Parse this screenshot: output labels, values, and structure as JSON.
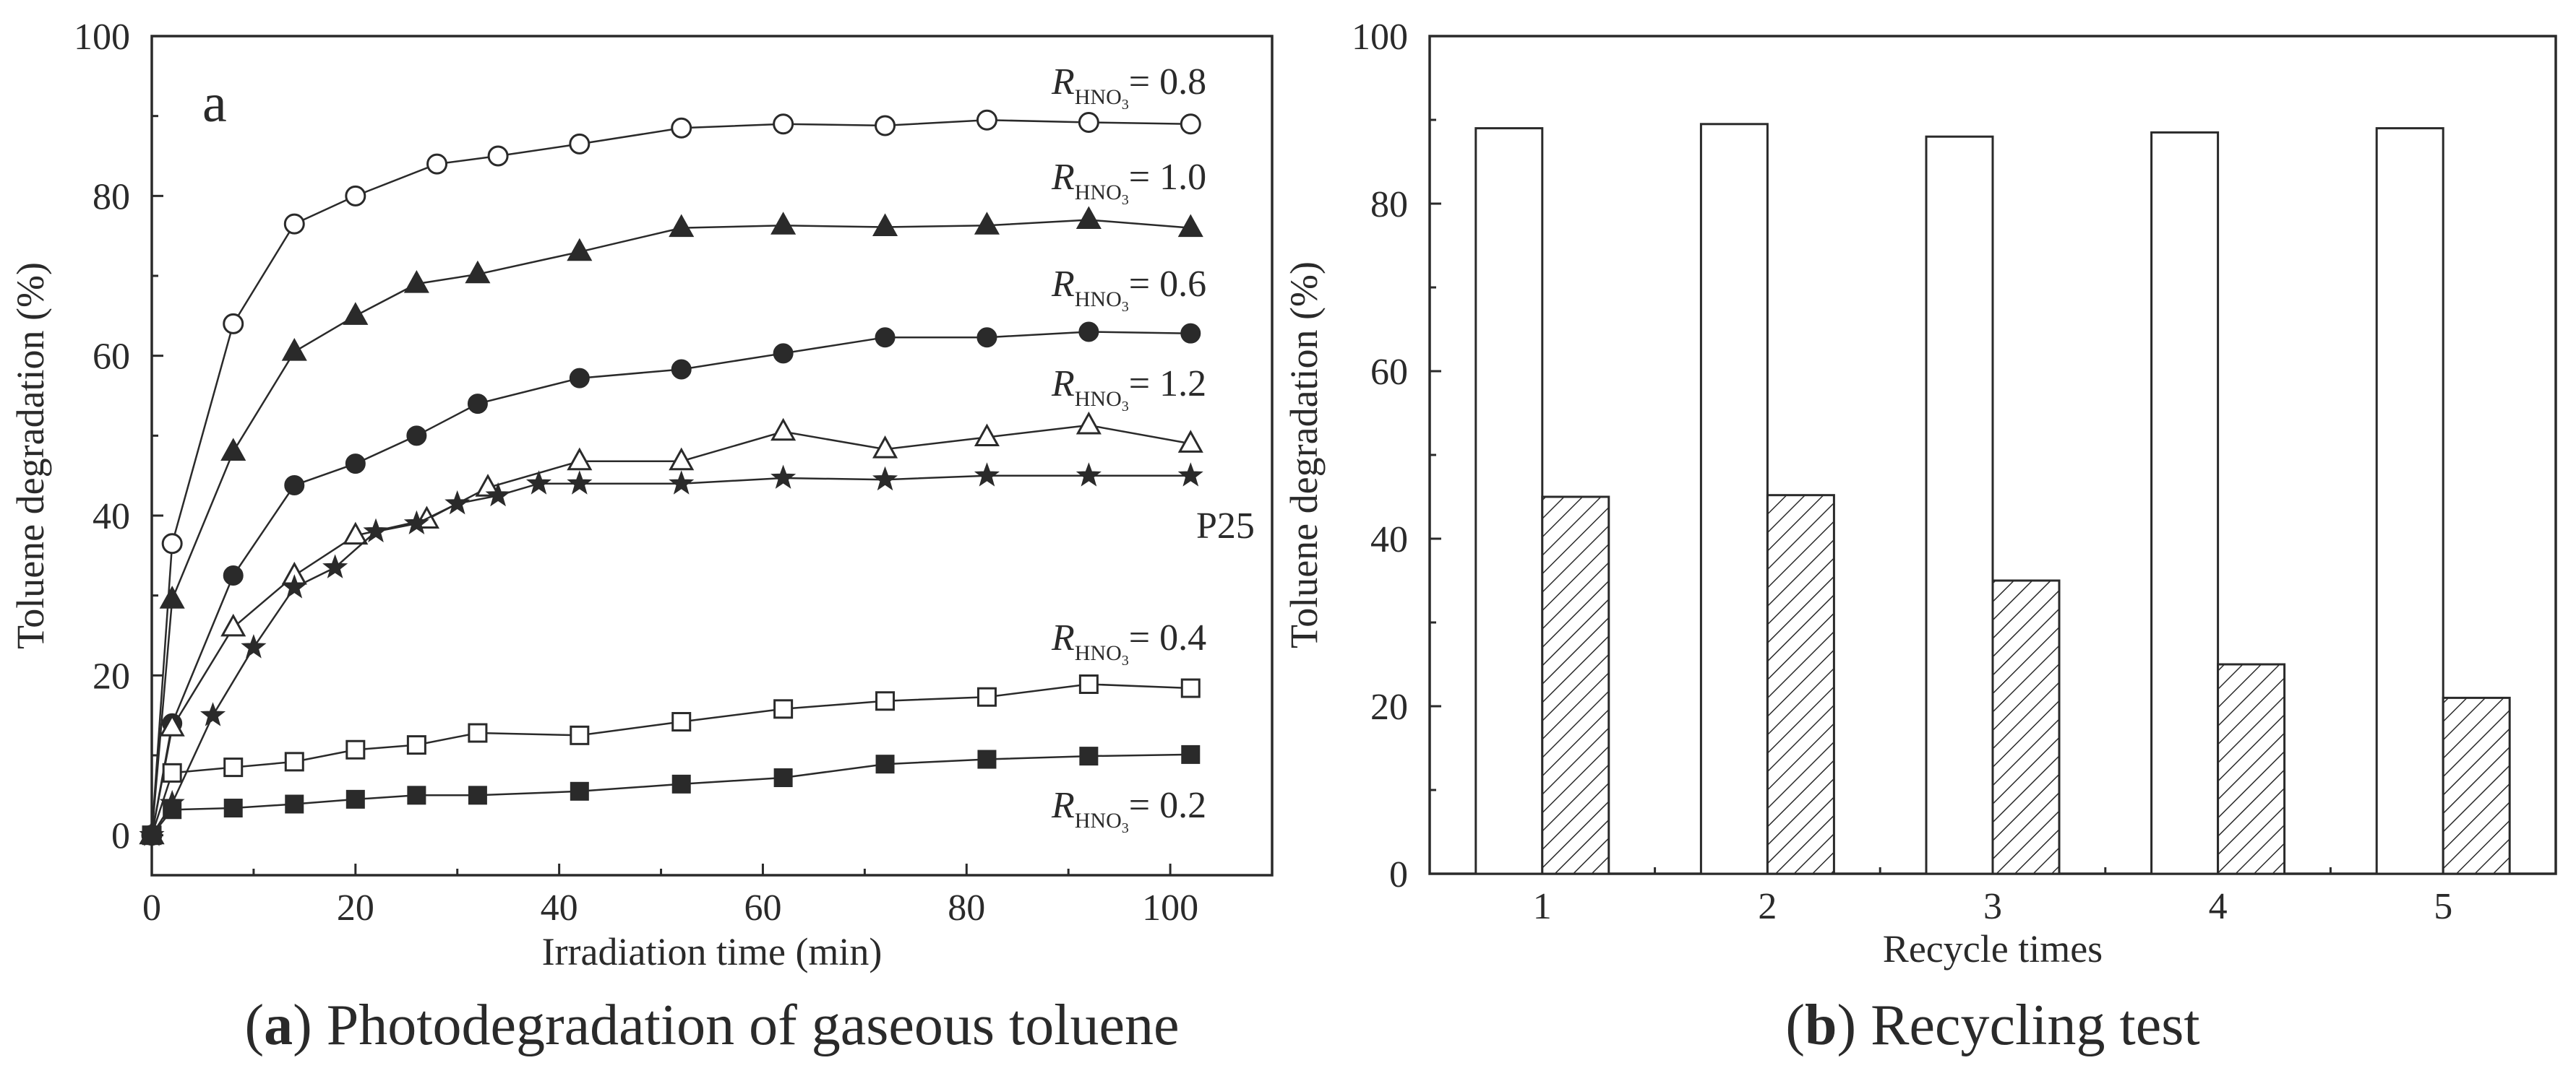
{
  "chart_data": [
    {
      "type": "line",
      "panel_letter": "a",
      "caption_bold": "a",
      "caption_text": "Photodegradation of gaseous toluene",
      "xlabel": "Irradiation time (min)",
      "ylabel": "Toluene degradation (%)",
      "xlim": [
        0,
        110
      ],
      "ylim": [
        -5,
        100
      ],
      "xticks": [
        0,
        20,
        40,
        60,
        80,
        100
      ],
      "yticks": [
        0,
        20,
        40,
        60,
        80,
        100
      ],
      "series": [
        {
          "name": "R_HNO3 = 0.8",
          "label_main": "R",
          "label_sub": "HNO",
          "label_sub2": "3",
          "label_val": "= 0.8",
          "marker": "circle-open",
          "x": [
            0,
            2,
            8,
            14,
            20,
            28,
            34,
            42,
            52,
            62,
            72,
            82,
            92,
            102
          ],
          "y": [
            0,
            36.5,
            64,
            76.5,
            80,
            84,
            85,
            86.5,
            88.5,
            89,
            88.8,
            89.5,
            89.2,
            89
          ]
        },
        {
          "name": "R_HNO3 = 1.0",
          "label_main": "R",
          "label_sub": "HNO",
          "label_sub2": "3",
          "label_val": "= 1.0",
          "marker": "triangle-filled",
          "x": [
            0,
            2,
            8,
            14,
            20,
            26,
            32,
            42,
            52,
            62,
            72,
            82,
            92,
            102
          ],
          "y": [
            0,
            29.5,
            48,
            60.5,
            65,
            69,
            70.2,
            73,
            76,
            76.3,
            76.1,
            76.3,
            77,
            76
          ]
        },
        {
          "name": "R_HNO3 = 0.6",
          "label_main": "R",
          "label_sub": "HNO",
          "label_sub2": "3",
          "label_val": "= 0.6",
          "marker": "circle-filled",
          "x": [
            0,
            2,
            8,
            14,
            20,
            26,
            32,
            42,
            52,
            62,
            72,
            82,
            92,
            102
          ],
          "y": [
            0,
            14,
            32.5,
            43.8,
            46.5,
            50,
            54,
            57.2,
            58.3,
            60.3,
            62.3,
            62.3,
            63,
            62.8
          ]
        },
        {
          "name": "R_HNO3 = 1.2",
          "label_main": "R",
          "label_sub": "HNO",
          "label_sub2": "3",
          "label_val": "= 1.2",
          "marker": "triangle-open",
          "x": [
            0,
            2,
            8,
            14,
            20,
            27,
            33,
            42,
            52,
            62,
            72,
            82,
            92,
            102
          ],
          "y": [
            0,
            13.5,
            26,
            32.5,
            37.5,
            39.5,
            43.5,
            46.8,
            46.8,
            50.5,
            48.3,
            49.8,
            51.3,
            49
          ]
        },
        {
          "name": "P25",
          "label_main": "P25",
          "label_sub": "",
          "label_sub2": "",
          "label_val": "",
          "marker": "star",
          "x": [
            0,
            2,
            6,
            10,
            14,
            18,
            22,
            26,
            30,
            34,
            38,
            42,
            52,
            62,
            72,
            82,
            92,
            102
          ],
          "y": [
            0,
            4,
            15,
            23.5,
            31,
            33.5,
            38,
            39,
            41.5,
            42.5,
            44,
            44,
            44,
            44.7,
            44.5,
            45,
            45,
            45
          ]
        },
        {
          "name": "R_HNO3 = 0.4",
          "label_main": "R",
          "label_sub": "HNO",
          "label_sub2": "3",
          "label_val": "= 0.4",
          "marker": "square-open",
          "x": [
            0,
            2,
            8,
            14,
            20,
            26,
            32,
            42,
            52,
            62,
            72,
            82,
            92,
            102
          ],
          "y": [
            0,
            7.8,
            8.5,
            9.2,
            10.7,
            11.3,
            12.8,
            12.5,
            14.2,
            15.8,
            16.8,
            17.3,
            18.9,
            18.4
          ]
        },
        {
          "name": "R_HNO3 = 0.2",
          "label_main": "R",
          "label_sub": "HNO",
          "label_sub2": "3",
          "label_val": "= 0.2",
          "marker": "square-filled",
          "x": [
            0,
            2,
            8,
            14,
            20,
            26,
            32,
            42,
            52,
            62,
            72,
            82,
            92,
            102
          ],
          "y": [
            0,
            3.2,
            3.4,
            3.9,
            4.5,
            5,
            5,
            5.5,
            6.4,
            7.2,
            8.9,
            9.5,
            9.9,
            10.1
          ]
        }
      ]
    },
    {
      "type": "bar",
      "panel_letter": "b",
      "caption_bold": "b",
      "caption_text": "Recycling test",
      "xlabel": "Recycle times",
      "ylabel": "Toluene degradation (%)",
      "ylim": [
        0,
        100
      ],
      "yticks": [
        0,
        20,
        40,
        60,
        80,
        100
      ],
      "categories": [
        "1",
        "2",
        "3",
        "4",
        "5"
      ],
      "series": [
        {
          "name": "open bars",
          "pattern": "none",
          "values": [
            89,
            89.5,
            88,
            88.5,
            89
          ]
        },
        {
          "name": "hatched bars",
          "pattern": "hatch",
          "values": [
            45,
            45.2,
            35,
            25,
            21
          ]
        }
      ]
    }
  ],
  "colors": {
    "ink": "#2a2a2a",
    "background": "#ffffff"
  }
}
